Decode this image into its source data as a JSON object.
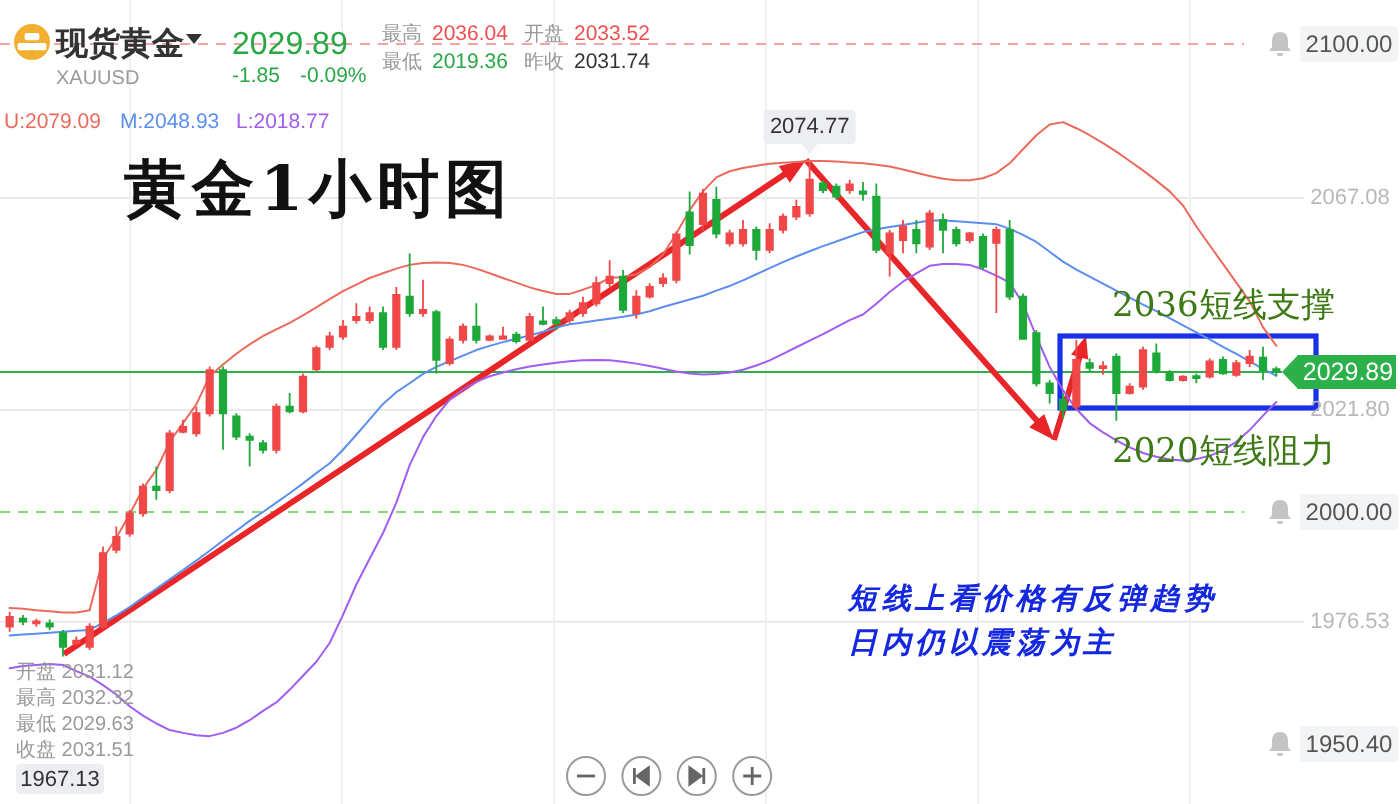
{
  "chart_data": {
    "type": "candlestick",
    "title": "黄金1小时图",
    "subtitle": "现货黄金",
    "categories": [
      null,
      null,
      null,
      null,
      null,
      null,
      null,
      null,
      null,
      null,
      null,
      null,
      null,
      null,
      null,
      null,
      null,
      null,
      null,
      null,
      null,
      null,
      null,
      null,
      null,
      null,
      null,
      null,
      null,
      null,
      null,
      null,
      null,
      null,
      null,
      null,
      null,
      null,
      null,
      null,
      null,
      null,
      null,
      null,
      null,
      null,
      null,
      null,
      null,
      null,
      null,
      null,
      null,
      null,
      null,
      null,
      null,
      null,
      null,
      null,
      null,
      null,
      null,
      null,
      null,
      null,
      null,
      null,
      null,
      null,
      null,
      null,
      null,
      null,
      null,
      null,
      null,
      null,
      null,
      null,
      null,
      null,
      null,
      null,
      null,
      null,
      null,
      null,
      null,
      null,
      null,
      null,
      null,
      null,
      null,
      null
    ],
    "ohlc": [
      [
        1975.5,
        1978.6,
        1974.4,
        1977.6
      ],
      [
        1977.2,
        1978,
        1975.8,
        1976.6
      ],
      [
        1976.2,
        1977.2,
        1975.5,
        1976.6
      ],
      [
        1976.2,
        1977,
        1974.8,
        1975.5
      ],
      [
        1974.1,
        1974.8,
        1969.1,
        1971.2
      ],
      [
        1972,
        1973.4,
        1971.5,
        1972.5
      ],
      [
        1971.2,
        1976.2,
        1970.5,
        1975.5
      ],
      [
        1975.5,
        1992.6,
        1975,
        1991.2
      ],
      [
        1991.9,
        1996.9,
        1991.2,
        1994.7
      ],
      [
        1995.4,
        2000.4,
        1994.7,
        1999.7
      ],
      [
        1999.7,
        2006.1,
        1999,
        2005.4
      ],
      [
        2005.4,
        2009.7,
        2002.6,
        2004.7
      ],
      [
        2004.7,
        2017.5,
        2004,
        2016.8
      ],
      [
        2017.1,
        2019.7,
        2016.8,
        2018.2
      ],
      [
        2016.8,
        2022.5,
        2016.1,
        2021.1
      ],
      [
        2021.1,
        2031.1,
        2020.4,
        2030.3
      ],
      [
        2030.3,
        2031.1,
        2013.3,
        2021.1
      ],
      [
        2020.4,
        2021.1,
        2015.4,
        2016.1
      ],
      [
        2016.1,
        2016.8,
        2009.7,
        2015.4
      ],
      [
        2014.7,
        2015.4,
        2012.5,
        2013.3
      ],
      [
        2013.3,
        2023.2,
        2012.5,
        2022.5
      ],
      [
        2022.5,
        2025.4,
        2021.1,
        2021.5
      ],
      [
        2021.5,
        2029.6,
        2021.1,
        2028.9
      ],
      [
        2030.5,
        2035.5,
        2030,
        2035
      ],
      [
        2035.3,
        2038.5,
        2034.6,
        2037.5
      ],
      [
        2037.5,
        2041,
        2036.8,
        2039.6
      ],
      [
        2041,
        2044.6,
        2040.3,
        2041.7
      ],
      [
        2041,
        2043.9,
        2040.3,
        2042.5
      ],
      [
        2042.5,
        2043.9,
        2034.6,
        2035.3
      ],
      [
        2035.3,
        2048.1,
        2034.6,
        2046.4
      ],
      [
        2046,
        2055.3,
        2041.7,
        2042.5
      ],
      [
        2042.5,
        2049.6,
        2041.7,
        2043.2
      ],
      [
        2042.7,
        2043.2,
        2029.6,
        2032.5
      ],
      [
        2031.8,
        2037.5,
        2031.3,
        2036.8
      ],
      [
        2036.8,
        2040.3,
        2036,
        2039.6
      ],
      [
        2039.6,
        2044.6,
        2036,
        2036.8
      ],
      [
        2036.8,
        2037.9,
        2036.5,
        2037.5
      ],
      [
        2037,
        2039.6,
        2036.8,
        2037.5
      ],
      [
        2037.9,
        2038.5,
        2036,
        2036.5
      ],
      [
        2036.8,
        2042.5,
        2036.5,
        2041.7
      ],
      [
        2040.7,
        2043.9,
        2039.9,
        2040.2
      ],
      [
        2041,
        2041.7,
        2038.9,
        2040.3
      ],
      [
        2041,
        2043.2,
        2040.3,
        2042.5
      ],
      [
        2042.5,
        2046,
        2041.7,
        2044.6
      ],
      [
        2044.6,
        2050.3,
        2043.9,
        2048.9
      ],
      [
        2048.9,
        2053.8,
        2048.1,
        2050.3
      ],
      [
        2050.3,
        2051.7,
        2042.5,
        2043.2
      ],
      [
        2042.5,
        2047.4,
        2041.3,
        2046
      ],
      [
        2046,
        2048.9,
        2045.6,
        2048.1
      ],
      [
        2048.9,
        2051,
        2048.1,
        2049.9
      ],
      [
        2049.6,
        2060,
        2048.9,
        2059.3
      ],
      [
        2064,
        2068.5,
        2055,
        2057
      ],
      [
        2061.5,
        2069,
        2060,
        2068
      ],
      [
        2066.7,
        2069.5,
        2058.5,
        2059.5
      ],
      [
        2057.4,
        2060.3,
        2056.7,
        2059.5
      ],
      [
        2057.4,
        2062.4,
        2056.7,
        2060.3
      ],
      [
        2060.3,
        2061,
        2053.8,
        2056
      ],
      [
        2056,
        2061.7,
        2055.3,
        2060.3
      ],
      [
        2060.3,
        2063.8,
        2059.5,
        2063.1
      ],
      [
        2063.1,
        2066.7,
        2062.4,
        2065.2
      ],
      [
        2063.8,
        2074.77,
        2063.1,
        2071
      ],
      [
        2070.2,
        2070.9,
        2068.1,
        2068.8
      ],
      [
        2069.5,
        2070.2,
        2066.7,
        2067.4
      ],
      [
        2068.8,
        2071,
        2068,
        2070
      ],
      [
        2068.5,
        2070.5,
        2066.5,
        2068
      ],
      [
        2067.4,
        2070.2,
        2055.3,
        2056
      ],
      [
        2055.3,
        2060.3,
        2050.3,
        2059.5
      ],
      [
        2058.1,
        2062.4,
        2055.3,
        2061
      ],
      [
        2060.3,
        2062.4,
        2055.3,
        2057.4
      ],
      [
        2056.7,
        2064.5,
        2056,
        2063.8
      ],
      [
        2062.4,
        2063.8,
        2055.3,
        2060.3
      ],
      [
        2060.3,
        2061,
        2056.7,
        2057.4
      ],
      [
        2058.1,
        2059.8,
        2057.4,
        2059.5
      ],
      [
        2058.8,
        2059.5,
        2051.7,
        2052.4
      ],
      [
        2057.5,
        2061,
        2042.5,
        2060.3
      ],
      [
        2060.3,
        2062.4,
        2045.3,
        2046
      ],
      [
        2046,
        2046.7,
        2036.8,
        2037
      ],
      [
        2038.2,
        2038.9,
        2026.8,
        2027.5
      ],
      [
        2027.5,
        2028.2,
        2023.2,
        2025.4
      ],
      [
        2024,
        2025.4,
        2020,
        2021.8
      ],
      [
        2022.5,
        2036.8,
        2021.8,
        2032.5
      ],
      [
        2031.8,
        2032.8,
        2029.9,
        2030.8
      ],
      [
        2030.8,
        2032.2,
        2029.3,
        2031.1
      ],
      [
        2033.2,
        2033.9,
        2019.5,
        2025.4
      ],
      [
        2025.4,
        2027.5,
        2025.1,
        2026.8
      ],
      [
        2026.8,
        2035.3,
        2026.1,
        2034.6
      ],
      [
        2033.9,
        2036,
        2029.6,
        2030.3
      ],
      [
        2029.9,
        2030.3,
        2027.9,
        2028.2
      ],
      [
        2028.2,
        2029.2,
        2027.9,
        2028.9
      ],
      [
        2029,
        2029.6,
        2027.5,
        2028.6
      ],
      [
        2028.9,
        2032.8,
        2028.5,
        2032.2
      ],
      [
        2032.5,
        2033.2,
        2029.3,
        2029.6
      ],
      [
        2029.3,
        2032.5,
        2028.9,
        2031.8
      ],
      [
        2031.8,
        2034.6,
        2031,
        2033.2
      ],
      [
        2033,
        2035.3,
        2028.2,
        2030.3
      ],
      [
        2030.5,
        2031.1,
        2029,
        2029.89
      ]
    ],
    "colors": [
      "#f04848",
      "#1fa83a",
      "#f04848",
      "#1fa83a",
      "#1fa83a",
      "#f04848",
      "#f04848",
      "#f04848",
      "#f04848",
      "#f04848",
      "#f04848",
      "#1fa83a",
      "#f04848",
      "#f04848",
      "#f04848",
      "#f04848",
      "#1fa83a",
      "#1fa83a",
      "#1fa83a",
      "#1fa83a",
      "#f04848",
      "#1fa83a",
      "#f04848",
      "#f04848",
      "#f04848",
      "#f04848",
      "#f04848",
      "#f04848",
      "#1fa83a",
      "#f04848",
      "#1fa83a",
      "#f04848",
      "#1fa83a",
      "#f04848",
      "#f04848",
      "#1fa83a",
      "#f04848",
      "#f04848",
      "#1fa83a",
      "#f04848",
      "#1fa83a",
      "#1fa83a",
      "#f04848",
      "#f04848",
      "#f04848",
      "#f04848",
      "#1fa83a",
      "#f04848",
      "#f04848",
      "#f04848",
      "#f04848",
      "#1fa83a",
      "#f04848",
      "#1fa83a",
      "#f04848",
      "#f04848",
      "#1fa83a",
      "#f04848",
      "#f04848",
      "#f04848",
      "#f04848",
      "#1fa83a",
      "#1fa83a",
      "#f04848",
      "#1fa83a",
      "#1fa83a",
      "#f04848",
      "#f04848",
      "#1fa83a",
      "#f04848",
      "#1fa83a",
      "#1fa83a",
      "#f04848",
      "#1fa83a",
      "#f04848",
      "#1fa83a",
      "#1fa83a",
      "#1fa83a",
      "#1fa83a",
      "#1fa83a",
      "#f04848",
      "#1fa83a",
      "#f04848",
      "#1fa83a",
      "#f04848",
      "#f04848",
      "#1fa83a",
      "#1fa83a",
      "#f04848",
      "#1fa83a",
      "#f04848",
      "#1fa83a",
      "#f04848",
      "#f04848",
      "#1fa83a",
      "#1fa83a"
    ],
    "series": [
      {
        "name": "U:2079.09",
        "type": "line",
        "color": "#ec6a5c",
        "values": [
          1979.5,
          1979.3,
          1979,
          1978.8,
          1978.5,
          1978.5,
          1979,
          1990,
          1994.5,
          1999.5,
          2005,
          2009,
          2015,
          2019,
          2023,
          2029,
          2031.5,
          2033.8,
          2035.8,
          2037.6,
          2039,
          2040.4,
          2042,
          2043.7,
          2045.5,
          2047.2,
          2048.6,
          2050,
          2051,
          2052,
          2052.8,
          2053.2,
          2053.3,
          2053.2,
          2052.8,
          2052,
          2051,
          2050,
          2049,
          2048,
          2047.2,
          2046.6,
          2046.6,
          2047.5,
          2048.5,
          2050,
          2050.2,
          2050.8,
          2052.3,
          2055,
          2059.5,
          2064.5,
          2068.5,
          2071.5,
          2072.8,
          2073.5,
          2074,
          2074.4,
          2074.6,
          2074.8,
          2075,
          2075,
          2074.9,
          2074.7,
          2074.5,
          2074.2,
          2073.8,
          2073.2,
          2072.5,
          2071.8,
          2071.2,
          2070.9,
          2070.9,
          2071.3,
          2072.4,
          2074.5,
          2077.5,
          2080.5,
          2082.8,
          2083.3,
          2082,
          2080.5,
          2078.8,
          2077,
          2075,
          2073,
          2070.8,
          2068.5,
          2065.5,
          2061,
          2057,
          2053,
          2049,
          2045,
          2039.5,
          2035.5
        ]
      },
      {
        "name": "M:2048.93",
        "type": "line",
        "color": "#5b8ef0",
        "values": [
          1973.6,
          1973.8,
          1974,
          1974.2,
          1974.4,
          1974.6,
          1974.8,
          1976.3,
          1977.9,
          1979.7,
          1981.7,
          1983.6,
          1985.6,
          1987.6,
          1989.6,
          1991.7,
          1993.9,
          1996,
          1998.1,
          2000,
          2002,
          2004,
          2006.1,
          2008.3,
          2010.4,
          2013.3,
          2016.5,
          2019.8,
          2023.1,
          2025.6,
          2027.5,
          2029.5,
          2031,
          2032.2,
          2033.4,
          2034.6,
          2035.5,
          2036.3,
          2037,
          2037.7,
          2038.5,
          2039.4,
          2040.1,
          2040.5,
          2040.9,
          2041.3,
          2041.7,
          2042.2,
          2042.9,
          2043.8,
          2044.6,
          2045.4,
          2046.2,
          2047.3,
          2048.3,
          2049.5,
          2050.8,
          2052.1,
          2053.4,
          2054.6,
          2055.7,
          2056.8,
          2057.8,
          2058.8,
          2059.8,
          2060.4,
          2060.9,
          2061.3,
          2061.8,
          2062.3,
          2062.3,
          2062.1,
          2061.9,
          2061.7,
          2061.5,
          2060.5,
          2059.2,
          2057.7,
          2055.6,
          2053.5,
          2051.8,
          2050.3,
          2048.8,
          2047.3,
          2045.8,
          2044.3,
          2042.9,
          2041.4,
          2039.9,
          2038.4,
          2036.9,
          2035.3,
          2033.8,
          2032.2,
          2030.6,
          2029.1
        ]
      },
      {
        "name": "L:2018.77",
        "type": "line",
        "color": "#a15cf0",
        "values": [
          1966.6,
          1967.1,
          1967.3,
          1967.5,
          1967.3,
          1966,
          1964.8,
          1963,
          1961,
          1958.5,
          1956.5,
          1954.8,
          1953.4,
          1952.8,
          1952.3,
          1952.1,
          1952.8,
          1953.9,
          1955.5,
          1957.5,
          1959.3,
          1962,
          1965,
          1968,
          1972,
          1978,
          1984.5,
          1990,
          1995.5,
          2002,
          2010,
          2016,
          2020.5,
          2024,
          2026.2,
          2027.8,
          2029,
          2029.8,
          2030.5,
          2031.1,
          2031.5,
          2031.9,
          2032.2,
          2032.4,
          2032.5,
          2032.4,
          2032.1,
          2031.7,
          2031.2,
          2030.6,
          2030,
          2029.6,
          2029.4,
          2029.5,
          2029.8,
          2030.4,
          2031.3,
          2032.4,
          2033.8,
          2035.2,
          2036.6,
          2038,
          2039.5,
          2041,
          2042.2,
          2044.5,
          2047,
          2049.2,
          2051,
          2052.6,
          2053,
          2053,
          2052.8,
          2051.8,
          2050.5,
          2049,
          2044.5,
          2037.5,
          2031,
          2026,
          2022,
          2019,
          2017,
          2015.3,
          2013.8,
          2012.6,
          2011.8,
          2011.2,
          2011,
          2011.3,
          2012,
          2013.2,
          2015,
          2017.5,
          2020.6,
          2023.5
        ]
      }
    ],
    "ylim": [
      1937.6,
      2109.4
    ],
    "yticks": [
      2067.08,
      {
        "value": 2021.8,
        "label": "2021.80"
      },
      1976.53
    ],
    "grid": true,
    "legend": "top left",
    "ref_lines": [
      {
        "axis": "y",
        "value": 2100,
        "label": "2100.00",
        "color": "#f3a3a3",
        "line_style": "dashed"
      },
      {
        "axis": "y",
        "value": 2000,
        "label": "2000.00",
        "color": "#86d977",
        "line_style": "dashed"
      },
      {
        "axis": "y",
        "value": 2029.89,
        "label": "2029.89",
        "color": "#2bb04a",
        "line_style": "solid"
      }
    ],
    "annotations": [
      "XAUUSD",
      "2029.89",
      "-1.85",
      "-0.09%",
      "最高",
      "2036.04",
      "开盘",
      "2033.52",
      "最低",
      "2019.36",
      "昨收",
      "2031.74",
      {
        "text": "2074.77",
        "y": 2074.77
      },
      "2036短线支撑",
      "2020短线阻力",
      "短线上看价格有反弹趋势",
      "日内仍以震荡为主",
      "开盘 2031.12",
      "最高 2032.32",
      "最低 2029.63",
      "收盘 2031.51",
      "1967.13",
      "1950.40"
    ]
  }
}
